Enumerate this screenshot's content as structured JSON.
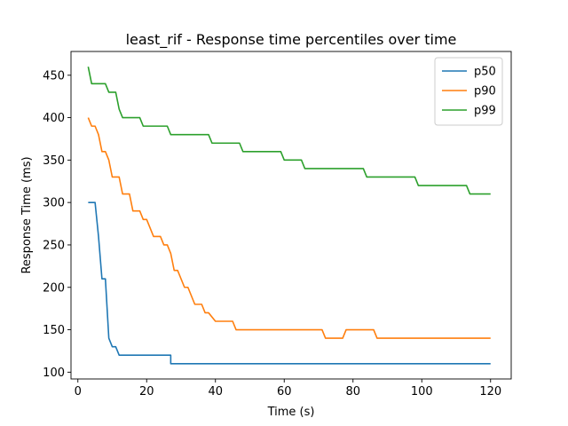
{
  "chart_data": {
    "type": "line",
    "title": "least_rif - Response time percentiles over time",
    "xlabel": "Time (s)",
    "ylabel": "Response Time (ms)",
    "xlim": [
      -2,
      126
    ],
    "ylim": [
      92,
      478
    ],
    "xticks": [
      0,
      20,
      40,
      60,
      80,
      100,
      120
    ],
    "yticks": [
      100,
      150,
      200,
      250,
      300,
      350,
      400,
      450
    ],
    "grid": false,
    "legend_position": "top-right",
    "series": [
      {
        "name": "p50",
        "color": "#1f77b4",
        "points": [
          [
            3,
            300
          ],
          [
            5,
            300
          ],
          [
            6,
            260
          ],
          [
            7,
            210
          ],
          [
            8,
            210
          ],
          [
            9,
            140
          ],
          [
            10,
            130
          ],
          [
            11,
            130
          ],
          [
            12,
            120
          ],
          [
            27,
            120
          ],
          [
            27,
            110
          ],
          [
            120,
            110
          ]
        ]
      },
      {
        "name": "p90",
        "color": "#ff7f0e",
        "points": [
          [
            3,
            400
          ],
          [
            4,
            390
          ],
          [
            5,
            390
          ],
          [
            6,
            380
          ],
          [
            7,
            360
          ],
          [
            8,
            360
          ],
          [
            9,
            350
          ],
          [
            10,
            330
          ],
          [
            12,
            330
          ],
          [
            13,
            310
          ],
          [
            15,
            310
          ],
          [
            16,
            290
          ],
          [
            18,
            290
          ],
          [
            19,
            280
          ],
          [
            20,
            280
          ],
          [
            22,
            260
          ],
          [
            24,
            260
          ],
          [
            25,
            250
          ],
          [
            26,
            250
          ],
          [
            27,
            240
          ],
          [
            28,
            220
          ],
          [
            29,
            220
          ],
          [
            31,
            200
          ],
          [
            32,
            200
          ],
          [
            34,
            180
          ],
          [
            36,
            180
          ],
          [
            37,
            170
          ],
          [
            38,
            170
          ],
          [
            40,
            160
          ],
          [
            45,
            160
          ],
          [
            46,
            150
          ],
          [
            71,
            150
          ],
          [
            72,
            140
          ],
          [
            77,
            140
          ],
          [
            78,
            150
          ],
          [
            86,
            150
          ],
          [
            87,
            140
          ],
          [
            120,
            140
          ]
        ]
      },
      {
        "name": "p99",
        "color": "#2ca02c",
        "points": [
          [
            3,
            460
          ],
          [
            4,
            440
          ],
          [
            8,
            440
          ],
          [
            9,
            430
          ],
          [
            11,
            430
          ],
          [
            12,
            410
          ],
          [
            13,
            400
          ],
          [
            18,
            400
          ],
          [
            19,
            390
          ],
          [
            26,
            390
          ],
          [
            27,
            380
          ],
          [
            38,
            380
          ],
          [
            39,
            370
          ],
          [
            47,
            370
          ],
          [
            48,
            360
          ],
          [
            59,
            360
          ],
          [
            60,
            350
          ],
          [
            65,
            350
          ],
          [
            66,
            340
          ],
          [
            83,
            340
          ],
          [
            84,
            330
          ],
          [
            98,
            330
          ],
          [
            99,
            320
          ],
          [
            113,
            320
          ],
          [
            114,
            310
          ],
          [
            120,
            310
          ]
        ]
      }
    ]
  }
}
